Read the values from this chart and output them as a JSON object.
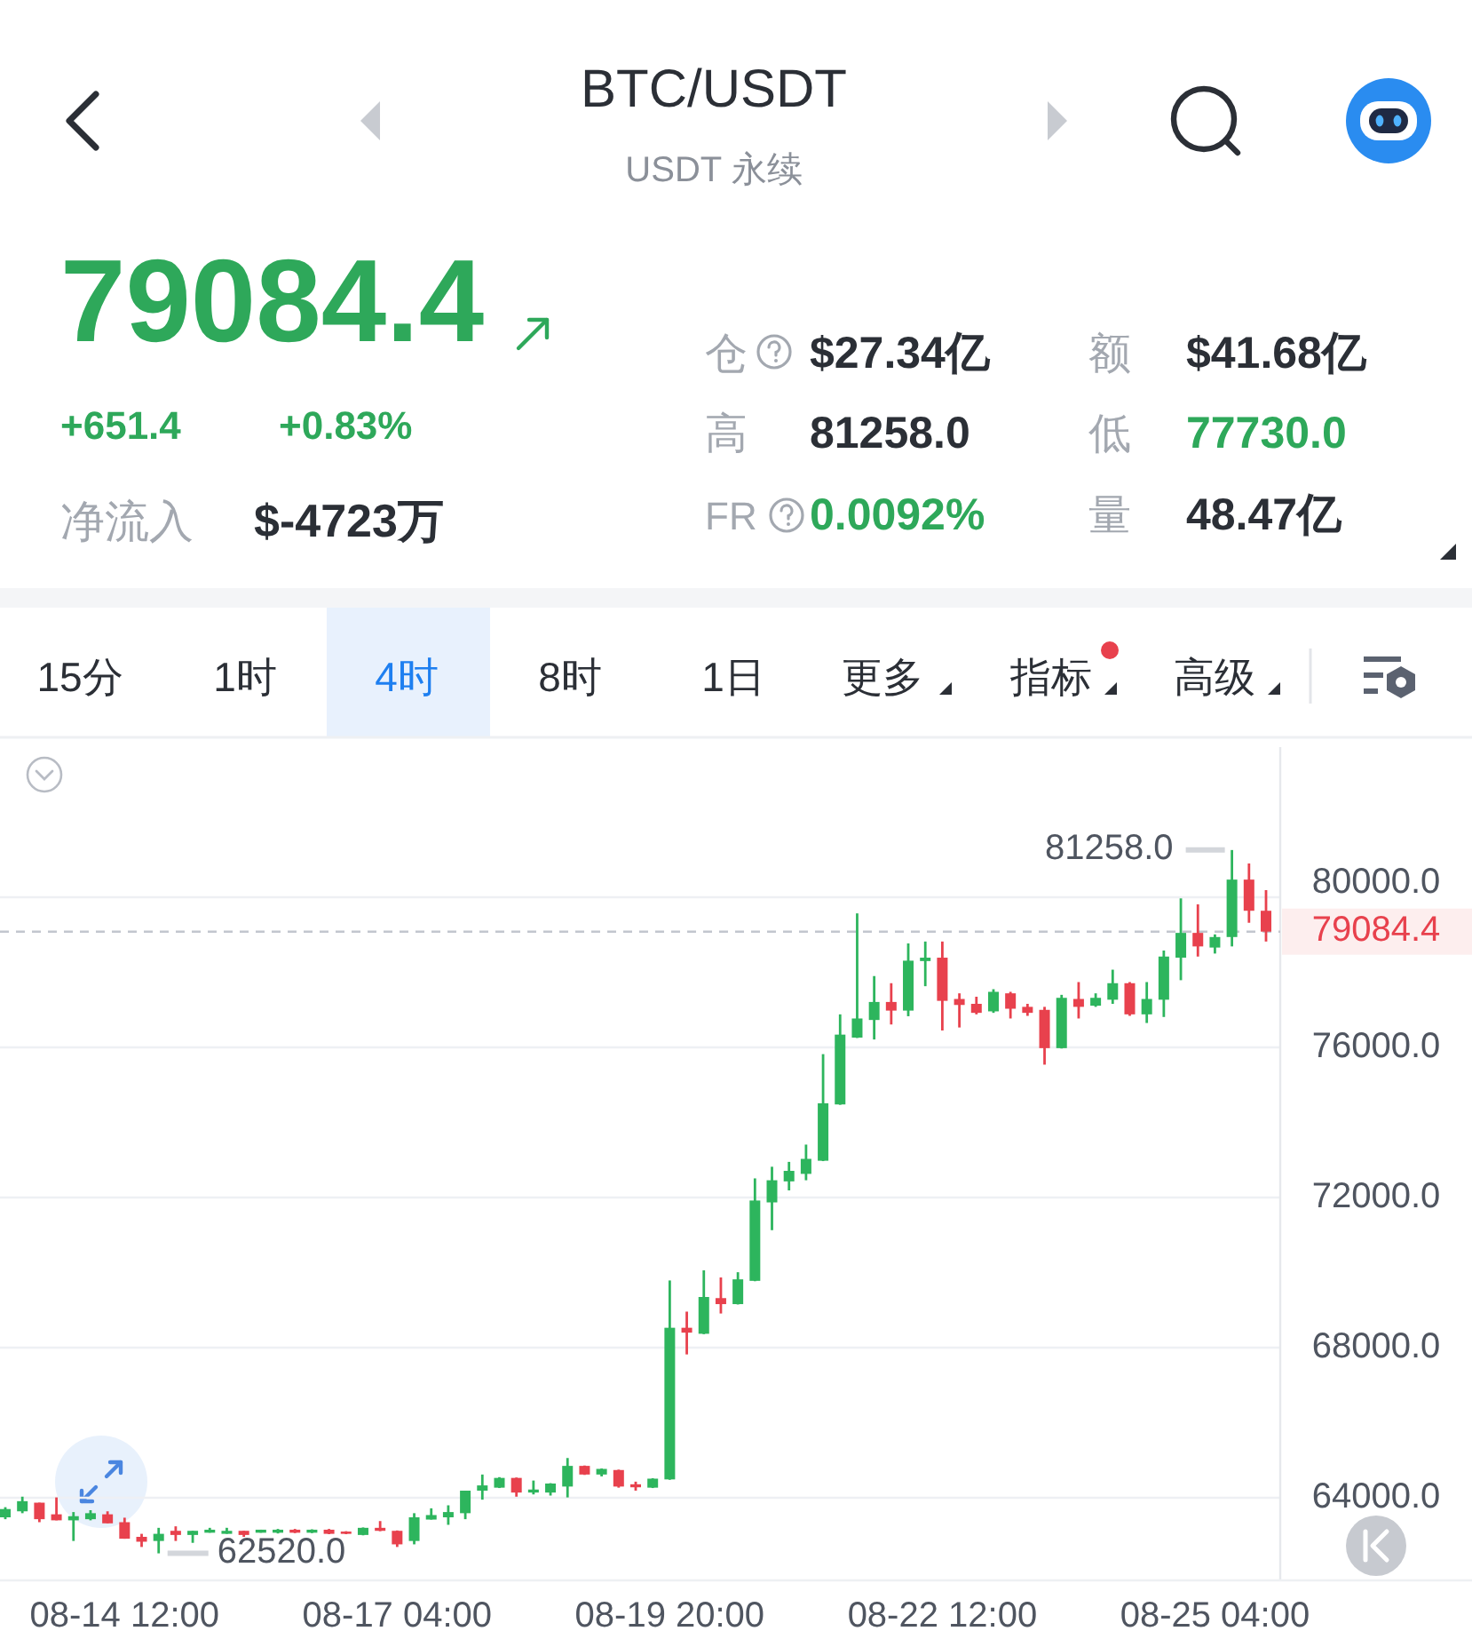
{
  "chart_data": {
    "type": "candlestick",
    "title": "BTC/USDT",
    "subtitle": "USDT 永续",
    "annotations": [
      "79084.4",
      "+651.4",
      "+0.83%",
      "净流入",
      "$-4723万",
      "仓",
      "$27.34亿",
      "额",
      "$41.68亿",
      "高",
      "81258.0",
      "低",
      "77730.0",
      "FR",
      "0.0092%",
      "量",
      "48.47亿",
      "15分",
      "1时",
      "4时",
      "8时",
      "1日",
      "更多",
      "指标",
      "高级",
      "81258.0",
      "62520.0"
    ],
    "categories": [
      null,
      null,
      null,
      null,
      null,
      null,
      null,
      "08-14 12:00",
      null,
      null,
      null,
      null,
      null,
      null,
      null,
      null,
      null,
      null,
      null,
      null,
      null,
      null,
      null,
      "08-17 04:00",
      null,
      null,
      null,
      null,
      null,
      null,
      null,
      null,
      null,
      null,
      null,
      null,
      null,
      null,
      null,
      "08-19 20:00",
      null,
      null,
      null,
      null,
      null,
      null,
      null,
      null,
      null,
      null,
      null,
      null,
      null,
      null,
      null,
      "08-22 12:00",
      null,
      null,
      null,
      null,
      null,
      null,
      null,
      null,
      null,
      null,
      null,
      null,
      null,
      null,
      null,
      "08-25 04:00",
      null,
      null,
      null
    ],
    "ohlc": [
      [
        63480,
        63750,
        63430,
        63700
      ],
      [
        63640,
        64030,
        63590,
        63910
      ],
      [
        63870,
        63870,
        63350,
        63430
      ],
      [
        63560,
        64010,
        63400,
        63400
      ],
      [
        63400,
        63620,
        62850,
        63510
      ],
      [
        63430,
        63670,
        63400,
        63590
      ],
      [
        63560,
        63640,
        63320,
        63320
      ],
      [
        63350,
        63470,
        62910,
        62910
      ],
      [
        62960,
        63040,
        62690,
        62830
      ],
      [
        62850,
        63200,
        62520,
        63040
      ],
      [
        63120,
        63240,
        62850,
        63010
      ],
      [
        63010,
        63120,
        62800,
        63120
      ],
      [
        63070,
        63200,
        63070,
        63150
      ],
      [
        63040,
        63200,
        63040,
        63120
      ],
      [
        63120,
        63120,
        62960,
        63010
      ],
      [
        63070,
        63150,
        63070,
        63150
      ],
      [
        63070,
        63170,
        63050,
        63150
      ],
      [
        63150,
        63170,
        63060,
        63070
      ],
      [
        63070,
        63160,
        63060,
        63150
      ],
      [
        63150,
        63170,
        63030,
        63040
      ],
      [
        63100,
        63110,
        63030,
        63040
      ],
      [
        63010,
        63210,
        63000,
        63200
      ],
      [
        63200,
        63380,
        63110,
        63120
      ],
      [
        63120,
        63130,
        62690,
        62760
      ],
      [
        62850,
        63590,
        62760,
        63480
      ],
      [
        63420,
        63720,
        63420,
        63540
      ],
      [
        63480,
        63800,
        63280,
        63620
      ],
      [
        63590,
        64190,
        63430,
        64190
      ],
      [
        64190,
        64620,
        63950,
        64330
      ],
      [
        64270,
        64550,
        64260,
        64530
      ],
      [
        64530,
        64540,
        64030,
        64140
      ],
      [
        64140,
        64460,
        64090,
        64220
      ],
      [
        64140,
        64390,
        64060,
        64380
      ],
      [
        64300,
        65060,
        64010,
        64850
      ],
      [
        64850,
        64860,
        64610,
        64620
      ],
      [
        64620,
        64780,
        64570,
        64770
      ],
      [
        64740,
        64750,
        64270,
        64300
      ],
      [
        64360,
        64430,
        64190,
        64280
      ],
      [
        64270,
        64520,
        64260,
        64510
      ],
      [
        64490,
        69790,
        64480,
        68530
      ],
      [
        68530,
        68960,
        67820,
        68400
      ],
      [
        68370,
        70060,
        68360,
        69350
      ],
      [
        69320,
        69870,
        68910,
        69160
      ],
      [
        69160,
        70010,
        69150,
        69820
      ],
      [
        69780,
        72510,
        69770,
        71920
      ],
      [
        71870,
        72820,
        71130,
        72460
      ],
      [
        72430,
        72950,
        72190,
        72710
      ],
      [
        72630,
        73410,
        72460,
        73030
      ],
      [
        72980,
        75820,
        72970,
        74510
      ],
      [
        74480,
        76880,
        74470,
        76340
      ],
      [
        76260,
        79570,
        76250,
        76770
      ],
      [
        76730,
        77900,
        76210,
        77210
      ],
      [
        77210,
        77710,
        76610,
        76980
      ],
      [
        76980,
        78770,
        76830,
        78310
      ],
      [
        78300,
        78820,
        77630,
        78390
      ],
      [
        78390,
        78820,
        76450,
        77240
      ],
      [
        77290,
        77440,
        76530,
        77130
      ],
      [
        77160,
        77350,
        76880,
        76920
      ],
      [
        76960,
        77550,
        76920,
        77480
      ],
      [
        77440,
        77480,
        76770,
        77030
      ],
      [
        77080,
        77160,
        76840,
        76920
      ],
      [
        77000,
        77080,
        75540,
        75980
      ],
      [
        75980,
        77400,
        75970,
        77320
      ],
      [
        77290,
        77740,
        76770,
        77080
      ],
      [
        77110,
        77440,
        77080,
        77320
      ],
      [
        77270,
        78070,
        77160,
        77710
      ],
      [
        77710,
        77740,
        76840,
        76880
      ],
      [
        76880,
        77740,
        76650,
        77290
      ],
      [
        77270,
        78580,
        76810,
        78420
      ],
      [
        78390,
        79970,
        77790,
        79050
      ],
      [
        79050,
        79810,
        78420,
        78690
      ],
      [
        78660,
        79010,
        78500,
        78940
      ],
      [
        78940,
        81258,
        78690,
        80470
      ],
      [
        80470,
        80900,
        79320,
        79640
      ],
      [
        79640,
        80190,
        78820,
        79084.4
      ]
    ],
    "colors": [
      "#2db55d",
      "#2db55d",
      "#e8414d",
      "#e8414d",
      "#2db55d",
      "#2db55d",
      "#e8414d",
      "#e8414d",
      "#e8414d",
      "#2db55d",
      "#e8414d",
      "#2db55d",
      "#2db55d",
      "#2db55d",
      "#e8414d",
      "#2db55d",
      "#2db55d",
      "#e8414d",
      "#2db55d",
      "#e8414d",
      "#e8414d",
      "#2db55d",
      "#e8414d",
      "#e8414d",
      "#2db55d",
      "#2db55d",
      "#2db55d",
      "#2db55d",
      "#2db55d",
      "#2db55d",
      "#e8414d",
      "#2db55d",
      "#2db55d",
      "#2db55d",
      "#e8414d",
      "#2db55d",
      "#e8414d",
      "#e8414d",
      "#2db55d",
      "#2db55d",
      "#e8414d",
      "#2db55d",
      "#e8414d",
      "#2db55d",
      "#2db55d",
      "#2db55d",
      "#2db55d",
      "#2db55d",
      "#2db55d",
      "#2db55d",
      "#2db55d",
      "#2db55d",
      "#e8414d",
      "#2db55d",
      "#2db55d",
      "#e8414d",
      "#e8414d",
      "#e8414d",
      "#2db55d",
      "#e8414d",
      "#e8414d",
      "#e8414d",
      "#2db55d",
      "#e8414d",
      "#2db55d",
      "#2db55d",
      "#e8414d",
      "#2db55d",
      "#2db55d",
      "#2db55d",
      "#e8414d",
      "#2db55d",
      "#2db55d",
      "#e8414d",
      "#e8414d"
    ],
    "ylim": [
      61800,
      84000
    ],
    "yticks": [
      {
        "value": 64000,
        "label": "64000.0"
      },
      {
        "value": 68000,
        "label": "68000.0"
      },
      {
        "value": 72000,
        "label": "72000.0"
      },
      {
        "value": 76000,
        "label": "76000.0"
      },
      {
        "value": 80000,
        "label": "80000.0"
      }
    ],
    "grid": "y",
    "ref_lines": [
      {
        "axis": "y",
        "value": 79084.4,
        "label": "79084.4",
        "color": "#c2c6ce",
        "line_style": "dashed"
      }
    ]
  }
}
